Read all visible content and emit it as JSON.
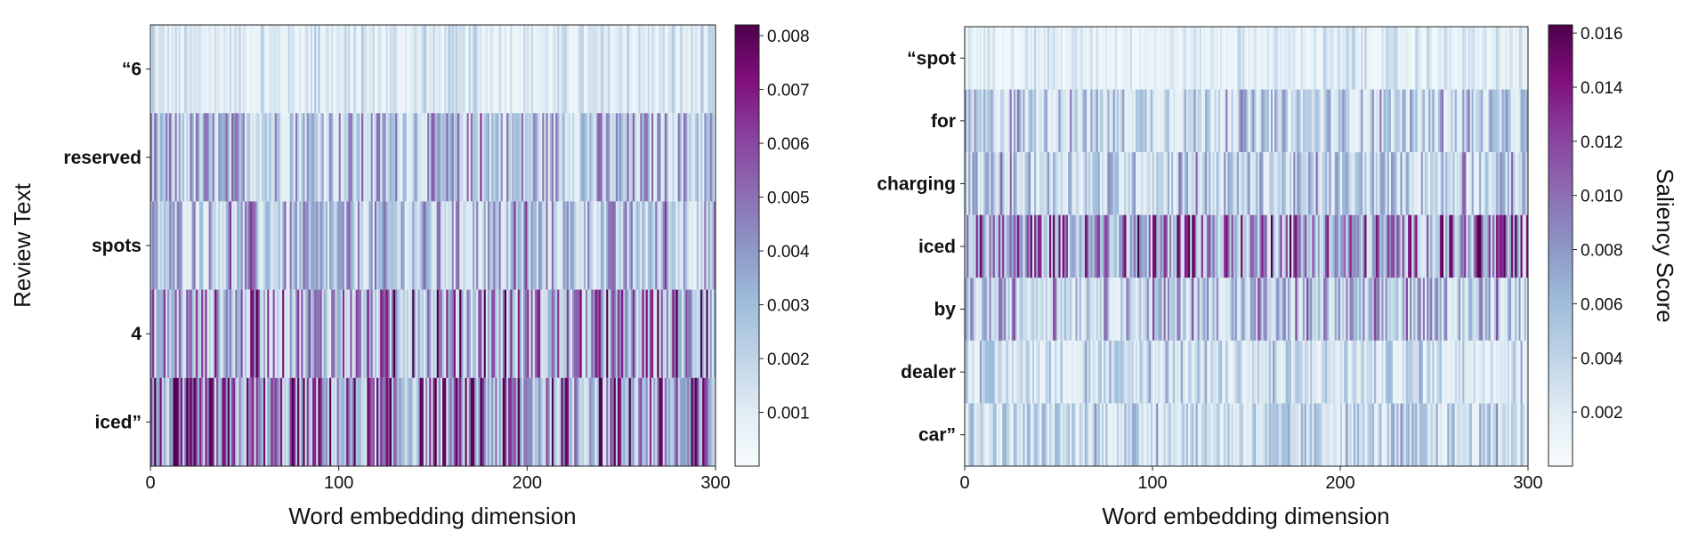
{
  "chart_data": [
    {
      "type": "heatmap",
      "title": "",
      "xlabel": "Word embedding dimension",
      "ylabel": "Review Text",
      "x_range": [
        0,
        300
      ],
      "x_ticks": [
        "0",
        "100",
        "200",
        "300"
      ],
      "rows": [
        "“6",
        "reserved",
        "spots",
        "4",
        "iced”"
      ],
      "row_mean_saliency": [
        0.0012,
        0.003,
        0.0029,
        0.004,
        0.0045
      ],
      "colorbar": {
        "label": "",
        "min": 0.0,
        "max": 0.0082,
        "ticks": [
          "0.001",
          "0.002",
          "0.003",
          "0.004",
          "0.005",
          "0.006",
          "0.007",
          "0.008"
        ]
      },
      "colormap": "BuPu"
    },
    {
      "type": "heatmap",
      "title": "",
      "xlabel": "Word embedding dimension",
      "ylabel": "",
      "x_range": [
        0,
        300
      ],
      "x_ticks": [
        "0",
        "100",
        "200",
        "300"
      ],
      "rows": [
        "“spot",
        "for",
        "charging",
        "iced",
        "by",
        "dealer",
        "car”"
      ],
      "row_mean_saliency": [
        0.002,
        0.0045,
        0.0048,
        0.0085,
        0.0055,
        0.0035,
        0.004
      ],
      "colorbar": {
        "label": "Saliency Score",
        "min": 0.0,
        "max": 0.0163,
        "ticks": [
          "0.002",
          "0.004",
          "0.006",
          "0.008",
          "0.010",
          "0.012",
          "0.014",
          "0.016"
        ]
      },
      "colormap": "BuPu"
    }
  ]
}
